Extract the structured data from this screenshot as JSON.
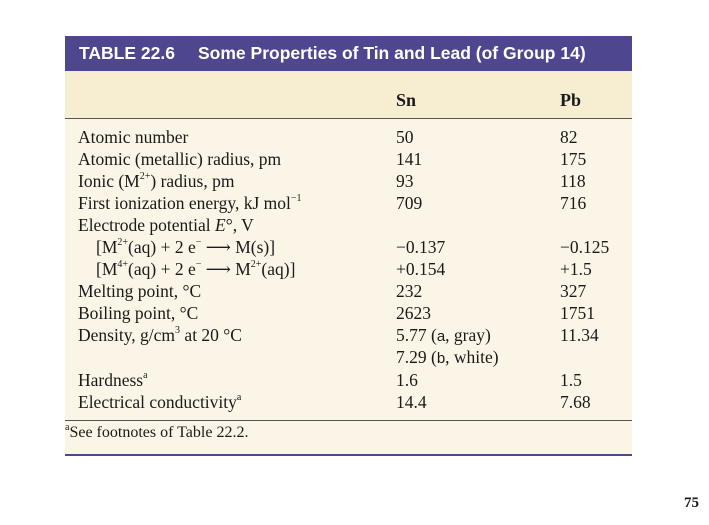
{
  "table": {
    "number": "TABLE 22.6",
    "caption": "Some Properties of Tin and Lead (of Group 14)",
    "columns": {
      "sn": "Sn",
      "pb": "Pb"
    },
    "rows": [
      {
        "label": "Atomic number",
        "sn": "50",
        "pb": "82"
      },
      {
        "label": "Atomic (metallic) radius, pm",
        "sn": "141",
        "pb": "175"
      },
      {
        "label_pre": "Ionic (M",
        "label_sup": "2+",
        "label_post": ") radius, pm",
        "sn": "93",
        "pb": "118"
      },
      {
        "label_pre": "First ionization energy, kJ mol",
        "label_sup": "−1",
        "sn": "709",
        "pb": "716"
      },
      {
        "label_pre": "Electrode potential ",
        "label_italic": "E",
        "label_post": "°, V"
      },
      {
        "label_pre": "[M",
        "label_sup": "2+",
        "label_mid": "(aq) + 2 e",
        "label_sup2": "−",
        "label_post": " ⟶ M(s)]",
        "sn": "−0.137",
        "pb": "−0.125"
      },
      {
        "label_pre": "[M",
        "label_sup": "4+",
        "label_mid": "(aq) + 2 e",
        "label_sup2": "−",
        "label_post": " ⟶ M",
        "label_sup3": "2+",
        "label_end": "(aq)]",
        "sn": "+0.154",
        "pb": "+1.5"
      },
      {
        "label": "Melting point, °C",
        "sn": "232",
        "pb": "327"
      },
      {
        "label": "Boiling point, °C",
        "sn": "2623",
        "pb": "1751"
      },
      {
        "label_pre": "Density, g/cm",
        "label_sup": "3",
        "label_post": " at 20 °C",
        "sn_pre": "5.77 (",
        "sn_mono": "a",
        "sn_post": ", gray)",
        "pb": "11.34"
      },
      {
        "sn_pre": "7.29 (",
        "sn_mono": "b",
        "sn_post": ", white)"
      },
      {
        "label_pre": "Hardness",
        "label_sup": "a",
        "sn": "1.6",
        "pb": "1.5"
      },
      {
        "label_pre": "Electrical conductivity",
        "label_sup": "a",
        "sn": "14.4",
        "pb": "7.68"
      }
    ],
    "footnote_sup": "a",
    "footnote_text": "See footnotes of Table 22.2."
  },
  "page_number": "75",
  "colors": {
    "title_bar": "#4f4690",
    "header_band": "#f7eed2",
    "body": "#faf5e6"
  }
}
